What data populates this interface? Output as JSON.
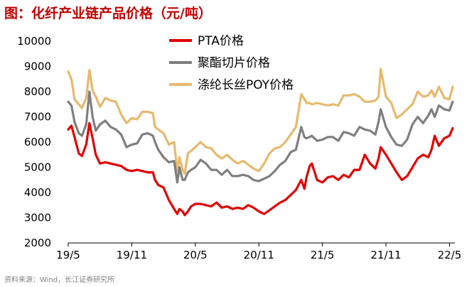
{
  "title": "图：化纤产业链产品价格（元/吨）",
  "source": "资料来源：Wind，长江证券研究所",
  "chart_data": {
    "type": "line",
    "title": "图：化纤产业链产品价格（元/吨）",
    "xlabel": "",
    "ylabel": "",
    "ylim": [
      2000,
      10000
    ],
    "yticks": [
      2000,
      3000,
      4000,
      5000,
      6000,
      7000,
      8000,
      9000,
      10000
    ],
    "ytick_labels": [
      "2000",
      "3000",
      "4000",
      "5000",
      "6000",
      "7000",
      "8000",
      "9000",
      "10000"
    ],
    "xlim": [
      0,
      36.5
    ],
    "xticks": [
      0,
      6,
      12,
      18,
      24,
      30,
      36
    ],
    "xtick_labels": [
      "19/5",
      "19/11",
      "20/5",
      "20/11",
      "21/5",
      "21/11",
      "22/5"
    ],
    "x_unit": "months since 2019-05",
    "legend_position": "top-center",
    "series": [
      {
        "name": "PTA价格",
        "color": "#e00000",
        "x": [
          0,
          0.3,
          0.6,
          1,
          1.3,
          1.7,
          2,
          2.3,
          2.6,
          3,
          3.5,
          4,
          4.5,
          5,
          5.5,
          6,
          6.5,
          7,
          7.5,
          8,
          8.2,
          8.5,
          9,
          9.5,
          10,
          10.3,
          10.5,
          10.8,
          11,
          11.3,
          11.6,
          12,
          12.5,
          13,
          13.5,
          14,
          14.5,
          15,
          15.5,
          16,
          16.5,
          17,
          17.5,
          18,
          18.5,
          19,
          19.5,
          20,
          20.5,
          21,
          21.5,
          22,
          22.3,
          22.5,
          22.8,
          23,
          23.5,
          24,
          24.5,
          25,
          25.5,
          26,
          26.5,
          27,
          27.5,
          28,
          28.5,
          29,
          29.3,
          29.5,
          30,
          30.5,
          31,
          31.5,
          32,
          32.5,
          33,
          33.5,
          34,
          34.3,
          34.6,
          35,
          35.5,
          36,
          36.3
        ],
        "values": [
          6500,
          6650,
          6200,
          5550,
          5450,
          5900,
          6750,
          6150,
          5500,
          5150,
          5200,
          5150,
          5100,
          5050,
          4900,
          4850,
          4900,
          4850,
          4800,
          4800,
          4500,
          4300,
          4200,
          3700,
          3350,
          3150,
          3350,
          3250,
          3100,
          3250,
          3450,
          3550,
          3550,
          3500,
          3450,
          3600,
          3400,
          3450,
          3350,
          3400,
          3350,
          3500,
          3400,
          3250,
          3150,
          3300,
          3450,
          3600,
          3700,
          3900,
          4100,
          4500,
          4150,
          4600,
          5050,
          5150,
          4500,
          4400,
          4600,
          4650,
          4500,
          4700,
          4600,
          4900,
          4900,
          5500,
          5150,
          4950,
          5350,
          5800,
          5500,
          5150,
          4800,
          4500,
          4650,
          5000,
          5350,
          5500,
          5400,
          5700,
          6250,
          5850,
          6150,
          6250,
          6550
        ]
      },
      {
        "name": "聚酯切片价格",
        "color": "#7f7f7f",
        "x": [
          0,
          0.3,
          0.6,
          1,
          1.3,
          1.7,
          2,
          2.3,
          2.6,
          3,
          3.5,
          4,
          4.5,
          5,
          5.5,
          6,
          6.5,
          7,
          7.5,
          8,
          8.2,
          8.5,
          9,
          9.5,
          10,
          10.3,
          10.5,
          10.8,
          11,
          11.3,
          11.6,
          12,
          12.5,
          13,
          13.5,
          14,
          14.5,
          15,
          15.5,
          16,
          16.5,
          17,
          17.5,
          18,
          18.5,
          19,
          19.5,
          20,
          20.5,
          21,
          21.5,
          22,
          22.3,
          22.5,
          22.8,
          23,
          23.5,
          24,
          24.5,
          25,
          25.5,
          26,
          26.5,
          27,
          27.5,
          28,
          28.5,
          29,
          29.3,
          29.5,
          30,
          30.5,
          31,
          31.5,
          32,
          32.5,
          33,
          33.5,
          34,
          34.3,
          34.6,
          35,
          35.5,
          36,
          36.3
        ],
        "values": [
          7600,
          7450,
          6800,
          6350,
          6250,
          6700,
          8000,
          7000,
          6450,
          6700,
          6850,
          6600,
          6500,
          6300,
          5800,
          5900,
          5950,
          6300,
          6350,
          6250,
          6000,
          5700,
          5400,
          5200,
          5250,
          4400,
          5000,
          4500,
          4500,
          4800,
          4900,
          5000,
          5300,
          5150,
          4900,
          4900,
          4700,
          4900,
          4650,
          4650,
          4700,
          4650,
          4500,
          4450,
          4550,
          4650,
          4850,
          5100,
          5250,
          5600,
          5700,
          6600,
          6200,
          6150,
          6200,
          6250,
          6050,
          6100,
          6200,
          6200,
          6050,
          6400,
          6350,
          6250,
          6600,
          6500,
          6450,
          6300,
          6800,
          7300,
          6600,
          6200,
          5900,
          5850,
          6100,
          6700,
          7000,
          6750,
          7050,
          7300,
          7000,
          7450,
          7300,
          7250,
          7600
        ]
      },
      {
        "name": "涤纶长丝POY价格",
        "color": "#e6b96e",
        "x": [
          0,
          0.3,
          0.6,
          1,
          1.3,
          1.7,
          2,
          2.3,
          2.6,
          3,
          3.5,
          4,
          4.5,
          5,
          5.5,
          6,
          6.5,
          7,
          7.5,
          8,
          8.2,
          8.5,
          9,
          9.5,
          10,
          10.3,
          10.5,
          10.8,
          11,
          11.3,
          11.6,
          12,
          12.5,
          13,
          13.5,
          14,
          14.5,
          15,
          15.5,
          16,
          16.5,
          17,
          17.5,
          18,
          18.5,
          19,
          19.5,
          20,
          20.5,
          21,
          21.5,
          22,
          22.3,
          22.5,
          22.8,
          23,
          23.5,
          24,
          24.5,
          25,
          25.5,
          26,
          26.5,
          27,
          27.5,
          28,
          28.5,
          29,
          29.3,
          29.5,
          30,
          30.5,
          31,
          31.5,
          32,
          32.5,
          33,
          33.5,
          34,
          34.3,
          34.6,
          35,
          35.5,
          36,
          36.3
        ],
        "values": [
          8800,
          8500,
          7700,
          7500,
          7350,
          7750,
          8850,
          8050,
          7800,
          7400,
          7750,
          7650,
          7600,
          7100,
          6750,
          6950,
          6900,
          7200,
          7200,
          7150,
          6600,
          6500,
          6350,
          5900,
          6000,
          4850,
          5400,
          4900,
          4750,
          5550,
          5650,
          5800,
          6000,
          5800,
          5750,
          5500,
          5350,
          5500,
          5300,
          5150,
          5250,
          5100,
          4950,
          4850,
          5150,
          5550,
          5750,
          5800,
          6000,
          6300,
          6600,
          7900,
          7700,
          7550,
          7550,
          7500,
          7550,
          7500,
          7450,
          7500,
          7450,
          7850,
          7850,
          7900,
          7800,
          7600,
          7600,
          7650,
          7800,
          8900,
          7800,
          7550,
          6950,
          7100,
          7300,
          7500,
          8000,
          7800,
          7850,
          8050,
          7800,
          8200,
          7750,
          7700,
          8200
        ]
      }
    ]
  }
}
